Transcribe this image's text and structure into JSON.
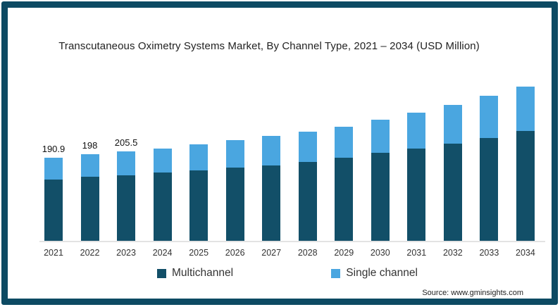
{
  "frame": {
    "border_color": "#0d4a63",
    "background": "#ffffff"
  },
  "title": "Transcutaneous Oximetry Systems Market, By Channel Type, 2021 – 2034 (USD Million)",
  "source": "Source: www.gminsights.com",
  "legend": {
    "items": [
      {
        "label": "Multichannel",
        "color": "#124f68"
      },
      {
        "label": "Single channel",
        "color": "#4aa6e0"
      }
    ]
  },
  "chart_data": {
    "type": "bar",
    "stacked": true,
    "title": "Transcutaneous Oximetry Systems Market, By Channel Type, 2021 – 2034 (USD Million)",
    "categories": [
      "2021",
      "2022",
      "2023",
      "2024",
      "2025",
      "2026",
      "2027",
      "2028",
      "2029",
      "2030",
      "2031",
      "2032",
      "2033",
      "2034"
    ],
    "series": [
      {
        "name": "Multichannel",
        "color": "#124f68",
        "values": [
          141,
          146,
          150,
          156,
          161,
          167,
          172,
          181,
          190,
          201,
          212,
          222,
          236,
          252
        ]
      },
      {
        "name": "Single channel",
        "color": "#4aa6e0",
        "values": [
          49.9,
          52,
          55.5,
          56,
          60,
          63,
          68,
          69,
          72,
          77,
          81,
          89,
          97,
          102
        ]
      }
    ],
    "visible_total_labels": [
      "190.9",
      "198",
      "205.5",
      "",
      "",
      "",
      "",
      "",
      "",
      "",
      "",
      "",
      "",
      ""
    ],
    "xlabel": "",
    "ylabel": "USD Million",
    "ylim": [
      0,
      400
    ],
    "grid": false,
    "legend_position": "bottom",
    "axis_line_color": "#e3e3e3"
  }
}
